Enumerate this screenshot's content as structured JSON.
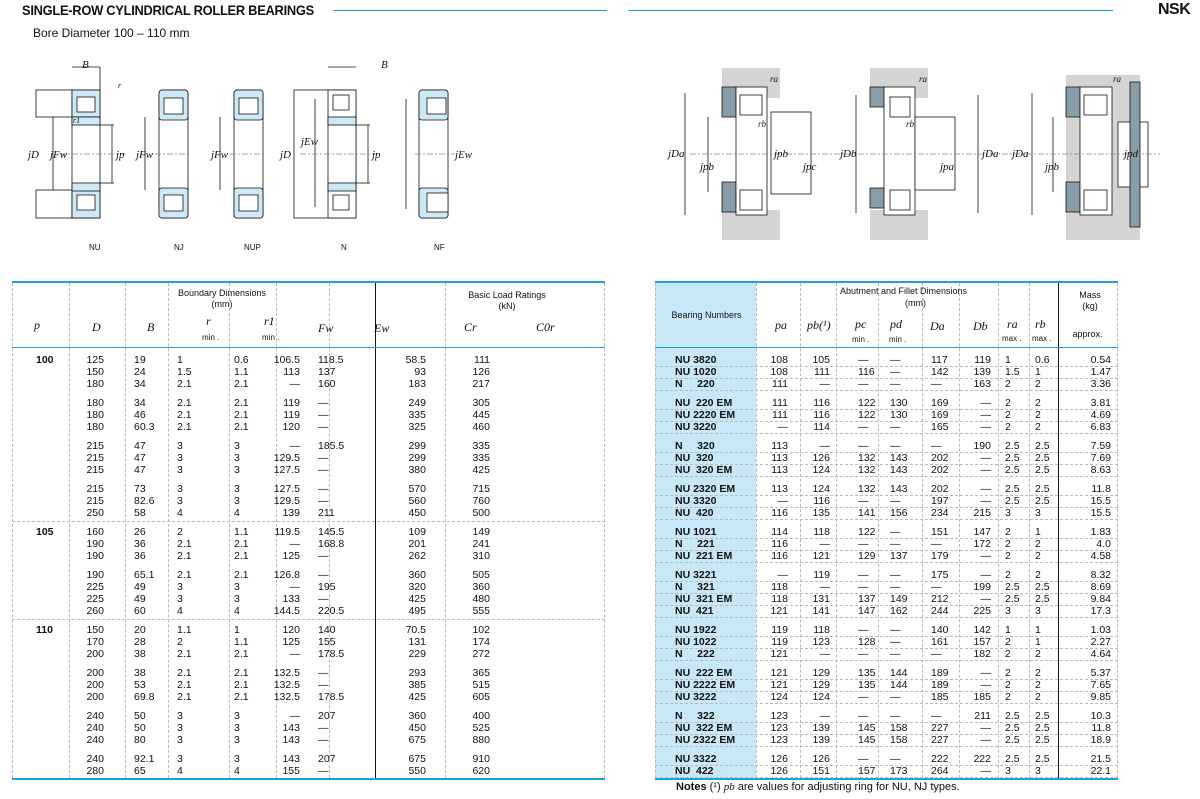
{
  "header": {
    "title": "SINGLE-ROW CYLINDRICAL ROLLER BEARINGS",
    "subtitle": "Bore Diameter  100 – 110 mm",
    "logo": "NSK",
    "accent_color": "#1aa3dc",
    "bearing_column_color": "#c8e8f8"
  },
  "diagrams": {
    "types": [
      "NU",
      "NJ",
      "NUP",
      "N",
      "NF"
    ],
    "labels": {
      "B": "B",
      "r": "r",
      "r1": "r1",
      "D": "jD",
      "Fw": "jFw",
      "Ew": "jEw",
      "p": "jp",
      "pa": "jpa",
      "pb": "jpb",
      "pc": "jpc",
      "pd": "jpd",
      "Da": "jDa",
      "Db": "jDb",
      "ra": "ra",
      "rb": "rb"
    }
  },
  "left_table": {
    "group_headers": {
      "boundary": "Boundary Dimensions",
      "boundary_unit": "(mm)",
      "load": "Basic Load Ratings",
      "load_unit": "(kN)"
    },
    "columns": {
      "bore": "p",
      "D": "D",
      "B": "B",
      "r": "r",
      "r1": "r1",
      "r_min": "min .",
      "r1_min": "min .",
      "Fw": "Fw",
      "Ew": "Ew",
      "Cr": "Cr",
      "C0r": "C0r"
    },
    "bores": [
      "100",
      "105",
      "110"
    ],
    "rows": [
      [
        "125",
        "19",
        "1",
        "0.6",
        "106.5",
        "118.5",
        "58.5",
        "111"
      ],
      [
        "150",
        "24",
        "1.5",
        "1.1",
        "113",
        "137",
        "93",
        "126"
      ],
      [
        "180",
        "34",
        "2.1",
        "2.1",
        "—",
        "160",
        "183",
        "217"
      ],
      [
        "180",
        "34",
        "2.1",
        "2.1",
        "119",
        "—",
        "249",
        "305"
      ],
      [
        "180",
        "46",
        "2.1",
        "2.1",
        "119",
        "—",
        "335",
        "445"
      ],
      [
        "180",
        "60.3",
        "2.1",
        "2.1",
        "120",
        "—",
        "325",
        "460"
      ],
      [
        "215",
        "47",
        "3",
        "3",
        "—",
        "185.5",
        "299",
        "335"
      ],
      [
        "215",
        "47",
        "3",
        "3",
        "129.5",
        "—",
        "299",
        "335"
      ],
      [
        "215",
        "47",
        "3",
        "3",
        "127.5",
        "—",
        "380",
        "425"
      ],
      [
        "215",
        "73",
        "3",
        "3",
        "127.5",
        "—",
        "570",
        "715"
      ],
      [
        "215",
        "82.6",
        "3",
        "3",
        "129.5",
        "—",
        "560",
        "760"
      ],
      [
        "250",
        "58",
        "4",
        "4",
        "139",
        "211",
        "450",
        "500"
      ],
      [
        "160",
        "26",
        "2",
        "1.1",
        "119.5",
        "145.5",
        "109",
        "149"
      ],
      [
        "190",
        "36",
        "2.1",
        "2.1",
        "—",
        "168.8",
        "201",
        "241"
      ],
      [
        "190",
        "36",
        "2.1",
        "2.1",
        "125",
        "—",
        "262",
        "310"
      ],
      [
        "190",
        "65.1",
        "2.1",
        "2.1",
        "126.8",
        "—",
        "360",
        "505"
      ],
      [
        "225",
        "49",
        "3",
        "3",
        "—",
        "195",
        "320",
        "360"
      ],
      [
        "225",
        "49",
        "3",
        "3",
        "133",
        "—",
        "425",
        "480"
      ],
      [
        "260",
        "60",
        "4",
        "4",
        "144.5",
        "220.5",
        "495",
        "555"
      ],
      [
        "150",
        "20",
        "1.1",
        "1",
        "120",
        "140",
        "70.5",
        "102"
      ],
      [
        "170",
        "28",
        "2",
        "1.1",
        "125",
        "155",
        "131",
        "174"
      ],
      [
        "200",
        "38",
        "2.1",
        "2.1",
        "—",
        "178.5",
        "229",
        "272"
      ],
      [
        "200",
        "38",
        "2.1",
        "2.1",
        "132.5",
        "—",
        "293",
        "365"
      ],
      [
        "200",
        "53",
        "2.1",
        "2.1",
        "132.5",
        "—",
        "385",
        "515"
      ],
      [
        "200",
        "69.8",
        "2.1",
        "2.1",
        "132.5",
        "178.5",
        "425",
        "605"
      ],
      [
        "240",
        "50",
        "3",
        "3",
        "—",
        "207",
        "360",
        "400"
      ],
      [
        "240",
        "50",
        "3",
        "3",
        "143",
        "—",
        "450",
        "525"
      ],
      [
        "240",
        "80",
        "3",
        "3",
        "143",
        "—",
        "675",
        "880"
      ],
      [
        "240",
        "92.1",
        "3",
        "3",
        "143",
        "207",
        "675",
        "910"
      ],
      [
        "280",
        "65",
        "4",
        "4",
        "155",
        "—",
        "550",
        "620"
      ]
    ]
  },
  "right_table": {
    "group_headers": {
      "abutment": "Abutment and Fillet  Dimensions",
      "abutment_unit": "(mm)",
      "mass": "Mass",
      "mass_unit": "(kg)",
      "approx": "approx."
    },
    "columns": {
      "bearing": "Bearing Numbers",
      "pa": "pa",
      "pb": "pb(¹)",
      "pc": "pc",
      "pd": "pd",
      "pc_min": "min .",
      "pd_min": "min .",
      "Da": "Da",
      "Db": "Db",
      "ra": "ra",
      "rb": "rb",
      "ra_max": "max .",
      "rb_max": "max ."
    },
    "rows": [
      [
        "NU 3820",
        "108",
        "105",
        "—",
        "—",
        "117",
        "119",
        "1",
        "0.6",
        "0.54"
      ],
      [
        "NU 1020",
        "108",
        "111",
        "116",
        "—",
        "142",
        "139",
        "1.5",
        "1",
        "1.47"
      ],
      [
        "N     220",
        "111",
        "—",
        "—",
        "—",
        "—",
        "163",
        "2",
        "2",
        "3.36"
      ],
      [
        "NU  220 EM",
        "111",
        "116",
        "122",
        "130",
        "169",
        "—",
        "2",
        "2",
        "3.81"
      ],
      [
        "NU 2220 EM",
        "111",
        "116",
        "122",
        "130",
        "169",
        "—",
        "2",
        "2",
        "4.69"
      ],
      [
        "NU 3220",
        "—",
        "114",
        "—",
        "—",
        "165",
        "—",
        "2",
        "2",
        "6.83"
      ],
      [
        "N     320",
        "113",
        "—",
        "—",
        "—",
        "—",
        "190",
        "2.5",
        "2.5",
        "7.59"
      ],
      [
        "NU  320",
        "113",
        "126",
        "132",
        "143",
        "202",
        "—",
        "2.5",
        "2.5",
        "7.69"
      ],
      [
        "NU  320 EM",
        "113",
        "124",
        "132",
        "143",
        "202",
        "—",
        "2.5",
        "2.5",
        "8.63"
      ],
      [
        "NU 2320 EM",
        "113",
        "124",
        "132",
        "143",
        "202",
        "—",
        "2.5",
        "2.5",
        "11.8"
      ],
      [
        "NU 3320",
        "—",
        "116",
        "—",
        "—",
        "197",
        "—",
        "2.5",
        "2.5",
        "15.5"
      ],
      [
        "NU  420",
        "116",
        "135",
        "141",
        "156",
        "234",
        "215",
        "3",
        "3",
        "15.5"
      ],
      [
        "NU 1021",
        "114",
        "118",
        "122",
        "—",
        "151",
        "147",
        "2",
        "1",
        "1.83"
      ],
      [
        "N     221",
        "116",
        "—",
        "—",
        "—",
        "—",
        "172",
        "2",
        "2",
        "4.0"
      ],
      [
        "NU  221 EM",
        "116",
        "121",
        "129",
        "137",
        "179",
        "—",
        "2",
        "2",
        "4.58"
      ],
      [
        "NU 3221",
        "—",
        "119",
        "—",
        "—",
        "175",
        "—",
        "2",
        "2",
        "8.32"
      ],
      [
        "N     321",
        "118",
        "—",
        "—",
        "—",
        "—",
        "199",
        "2.5",
        "2.5",
        "8.69"
      ],
      [
        "NU  321 EM",
        "118",
        "131",
        "137",
        "149",
        "212",
        "—",
        "2.5",
        "2.5",
        "9.84"
      ],
      [
        "NU  421",
        "121",
        "141",
        "147",
        "162",
        "244",
        "225",
        "3",
        "3",
        "17.3"
      ],
      [
        "NU 1922",
        "119",
        "118",
        "—",
        "—",
        "140",
        "142",
        "1",
        "1",
        "1.03"
      ],
      [
        "NU 1022",
        "119",
        "123",
        "128",
        "—",
        "161",
        "157",
        "2",
        "1",
        "2.27"
      ],
      [
        "N     222",
        "121",
        "—",
        "—",
        "—",
        "—",
        "182",
        "2",
        "2",
        "4.64"
      ],
      [
        "NU  222 EM",
        "121",
        "129",
        "135",
        "144",
        "189",
        "—",
        "2",
        "2",
        "5.37"
      ],
      [
        "NU 2222 EM",
        "121",
        "129",
        "135",
        "144",
        "189",
        "—",
        "2",
        "2",
        "7.65"
      ],
      [
        "NU 3222",
        "124",
        "124",
        "—",
        "—",
        "185",
        "185",
        "2",
        "2",
        "9.85"
      ],
      [
        "N     322",
        "123",
        "—",
        "—",
        "—",
        "—",
        "211",
        "2.5",
        "2.5",
        "10.3"
      ],
      [
        "NU  322 EM",
        "123",
        "139",
        "145",
        "158",
        "227",
        "—",
        "2.5",
        "2.5",
        "11.8"
      ],
      [
        "NU 2322 EM",
        "123",
        "139",
        "145",
        "158",
        "227",
        "—",
        "2.5",
        "2.5",
        "18.9"
      ],
      [
        "NU 3322",
        "126",
        "126",
        "—",
        "—",
        "222",
        "222",
        "2.5",
        "2.5",
        "21.5"
      ],
      [
        "NU  422",
        "126",
        "151",
        "157",
        "173",
        "264",
        "—",
        "3",
        "3",
        "22.1"
      ]
    ]
  },
  "notes": {
    "label": "Notes",
    "mark": "(¹)",
    "symbol": "pb",
    "text": "are values for adjusting ring for NU, NJ types."
  }
}
